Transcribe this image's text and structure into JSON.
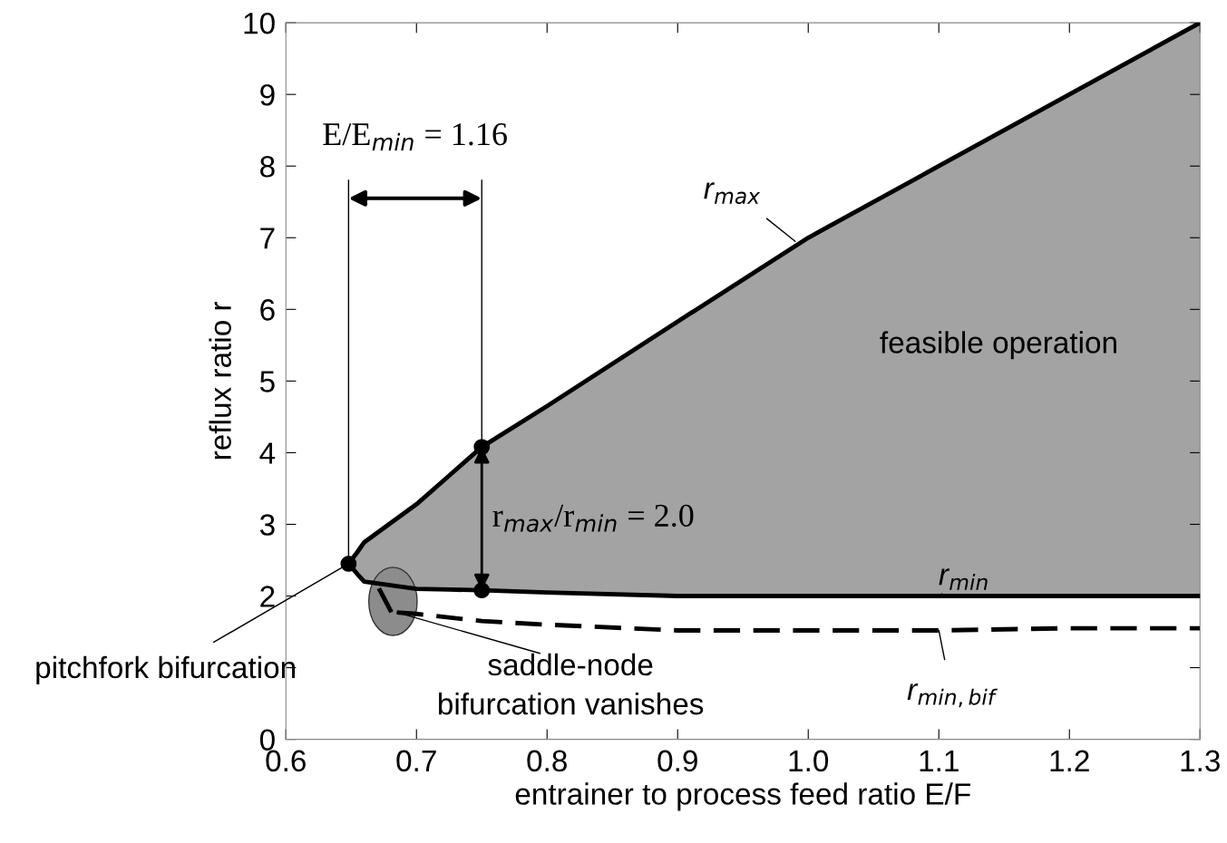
{
  "chart_data": {
    "type": "line",
    "xlabel": "entrainer to process feed ratio E/F",
    "ylabel": "reflux ratio r",
    "xlim": [
      0.6,
      1.3
    ],
    "ylim": [
      0,
      10
    ],
    "xticks": [
      0.6,
      0.7,
      0.8,
      0.9,
      {
        "value": 1.0,
        "label": "1.0"
      },
      1.1,
      1.2,
      1.3
    ],
    "yticks": [
      0,
      {
        "value": 1,
        "label": null
      },
      2,
      3,
      4,
      5,
      6,
      7,
      8,
      9,
      10
    ],
    "grid": false,
    "series": [
      {
        "color": "#000000",
        "line_style": "solid",
        "x": [
          0.648,
          0.655,
          0.66,
          0.7,
          0.725,
          0.75,
          0.8,
          0.9,
          1.0,
          1.1,
          1.2,
          1.3
        ],
        "values": [
          2.45,
          2.62,
          2.75,
          3.28,
          3.68,
          4.08,
          4.65,
          5.83,
          7.0,
          8.0,
          9.0,
          10.0
        ],
        "lower": [
          2.45,
          2.3,
          2.2,
          2.1,
          2.09,
          2.08,
          2.05,
          2.0,
          2.0,
          2.0,
          2.0,
          2.0
        ],
        "upper": [
          2.45,
          2.62,
          2.75,
          3.28,
          3.68,
          4.08,
          4.65,
          5.83,
          7.0,
          8.0,
          9.0,
          10.0
        ]
      },
      {
        "color": "#000000",
        "line_style": "solid",
        "x": [
          0.648,
          0.655,
          0.66,
          0.7,
          0.725,
          0.75,
          0.8,
          0.9,
          1.0,
          1.1,
          1.2,
          1.3
        ],
        "values": [
          2.45,
          2.3,
          2.2,
          2.1,
          2.09,
          2.08,
          2.05,
          2.0,
          2.0,
          2.0,
          2.0,
          2.0
        ]
      },
      {
        "color": "#000000",
        "line_style": "solid",
        "x": [
          0.672,
          0.68
        ],
        "values": [
          2.08,
          1.8
        ]
      },
      {
        "color": "#000000",
        "line_style": "dashed",
        "x": [
          0.685,
          0.7,
          0.75,
          0.8,
          0.9,
          1.0,
          1.1,
          1.2,
          1.3
        ],
        "values": [
          1.77,
          1.75,
          1.65,
          1.6,
          1.52,
          1.52,
          1.52,
          1.55,
          1.55
        ]
      },
      {
        "type": "scatter",
        "color": "#000000",
        "marker": "circle",
        "x": [
          0.648,
          0.75,
          0.75
        ],
        "values": [
          2.45,
          4.08,
          2.08
        ]
      }
    ],
    "annotations": [
      {
        "text": "r$_{max}$",
        "x": 0.99,
        "y": 6.95
      },
      {
        "text": "r$_{min}$",
        "x": 1.1,
        "y": 2.0
      },
      {
        "text": "r$_{min,bif}$",
        "x": 1.1,
        "y": 1.52
      },
      {
        "text": "pitchfork bifurcation",
        "x": 0.648,
        "y": 2.45
      },
      {
        "text": "saddle-node\nbifurcation vanishes",
        "x": 0.685,
        "y": 1.77
      },
      "feasible operation",
      {
        "text": "E/E$_{min}$ = 1.16",
        "x": 0.75,
        "y": 4.08
      },
      "r$_{max}$/r$_{min}$ = 2.0"
    ]
  }
}
